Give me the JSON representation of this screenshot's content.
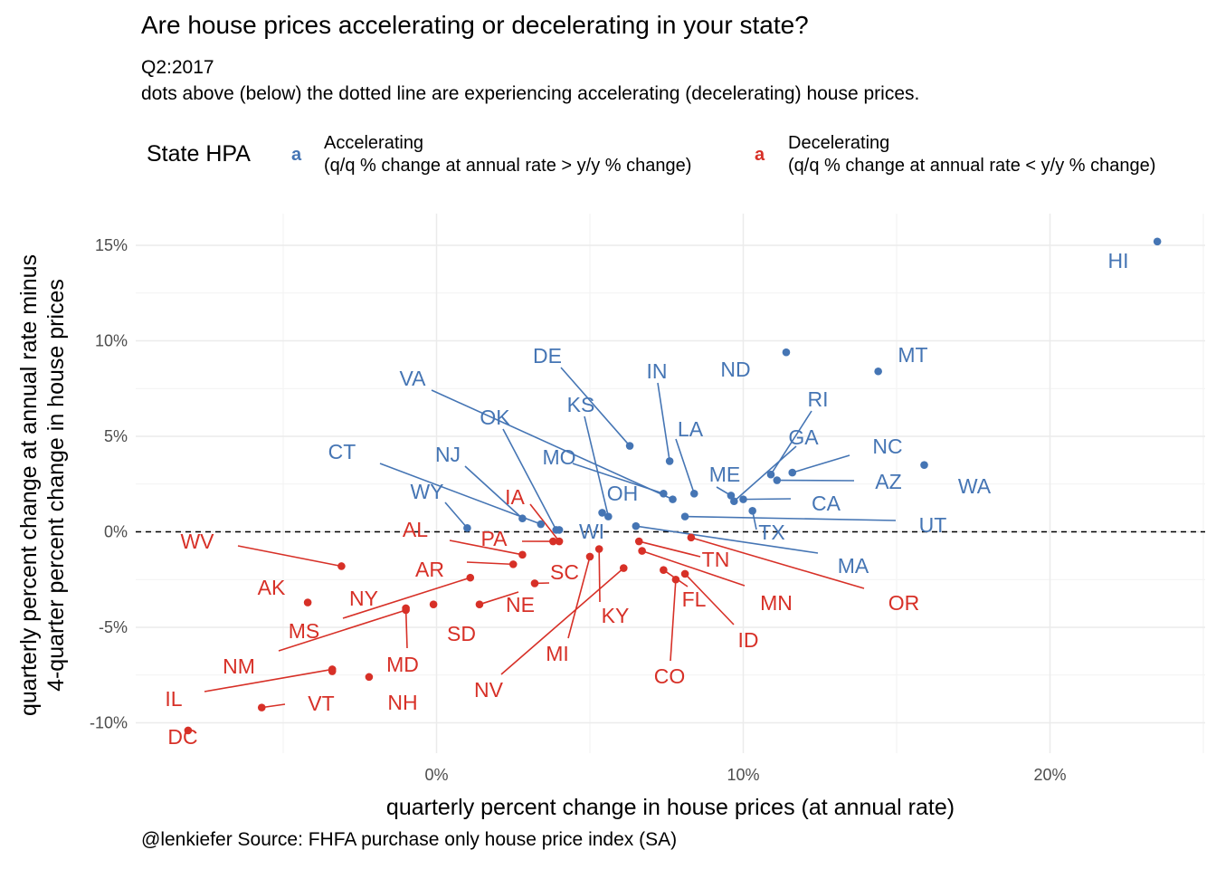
{
  "title": "Are house prices accelerating or decelerating in your state?",
  "subtitle_line1": "Q2:2017",
  "subtitle_line2": "dots above (below) the dotted line are experiencing accelerating (decelerating) house prices.",
  "caption": "@lenkiefer Source: FHFA purchase only house price index (SA)",
  "legend": {
    "title": "State HPA",
    "key_glyph": "a",
    "items": [
      {
        "line1": "Accelerating",
        "line2": "(q/q % change at annual rate > y/y % change)",
        "color": "#4575b4"
      },
      {
        "line1": "Decelerating",
        "line2": "(q/q % change at annual rate < y/y % change)",
        "color": "#d73027"
      }
    ]
  },
  "chart_data": {
    "type": "scatter",
    "title": "Are house prices accelerating or decelerating in your state?",
    "xlabel": "quarterly percent change in house prices (at annual rate)",
    "ylabel_line1": "quarterly percent change at annual rate minus",
    "ylabel_line2": "4-quarter percent change in house prices",
    "xlim": [
      -9.8,
      25.4
    ],
    "ylim": [
      -11.0,
      16.5
    ],
    "x_ticks": [
      0,
      10,
      20
    ],
    "x_tick_labels": [
      "0%",
      "10%",
      "20%"
    ],
    "y_ticks": [
      15,
      10,
      5,
      0,
      -5,
      -10
    ],
    "y_tick_labels": [
      "15%",
      "10%",
      "5%",
      "0%",
      "-5%",
      "-10%"
    ],
    "reference_line": {
      "y": 0,
      "style": "dashed"
    },
    "grid": true,
    "colors": {
      "Accelerating": "#4575b4",
      "Decelerating": "#d73027"
    },
    "points": [
      {
        "state": "HI",
        "x": 23.5,
        "y": 15.2,
        "group": "Accelerating"
      },
      {
        "state": "MT",
        "x": 14.4,
        "y": 8.4,
        "group": "Accelerating"
      },
      {
        "state": "ND",
        "x": 11.4,
        "y": 9.4,
        "group": "Accelerating"
      },
      {
        "state": "WA",
        "x": 15.9,
        "y": 3.5,
        "group": "Accelerating"
      },
      {
        "state": "NC",
        "x": 11.6,
        "y": 3.1,
        "group": "Accelerating"
      },
      {
        "state": "RI",
        "x": 10.9,
        "y": 3.0,
        "group": "Accelerating"
      },
      {
        "state": "AZ",
        "x": 11.1,
        "y": 2.7,
        "group": "Accelerating"
      },
      {
        "state": "GA",
        "x": 9.7,
        "y": 1.6,
        "group": "Accelerating"
      },
      {
        "state": "DE",
        "x": 6.3,
        "y": 4.5,
        "group": "Accelerating"
      },
      {
        "state": "IN",
        "x": 7.6,
        "y": 3.7,
        "group": "Accelerating"
      },
      {
        "state": "LA",
        "x": 8.4,
        "y": 2.0,
        "group": "Accelerating"
      },
      {
        "state": "ME",
        "x": 9.6,
        "y": 1.9,
        "group": "Accelerating"
      },
      {
        "state": "CA",
        "x": 10.0,
        "y": 1.7,
        "group": "Accelerating"
      },
      {
        "state": "UT",
        "x": 8.1,
        "y": 0.8,
        "group": "Accelerating"
      },
      {
        "state": "TX",
        "x": 10.3,
        "y": 1.1,
        "group": "Accelerating"
      },
      {
        "state": "MA",
        "x": 6.5,
        "y": 0.3,
        "group": "Accelerating"
      },
      {
        "state": "VA",
        "x": 7.7,
        "y": 1.7,
        "group": "Accelerating"
      },
      {
        "state": "KS",
        "x": 5.6,
        "y": 0.8,
        "group": "Accelerating"
      },
      {
        "state": "MO",
        "x": 7.4,
        "y": 2.0,
        "group": "Accelerating"
      },
      {
        "state": "OH",
        "x": 5.4,
        "y": 1.0,
        "group": "Accelerating"
      },
      {
        "state": "OK",
        "x": 3.9,
        "y": 0.1,
        "group": "Accelerating"
      },
      {
        "state": "NJ",
        "x": 2.8,
        "y": 0.7,
        "group": "Accelerating"
      },
      {
        "state": "CT",
        "x": 3.4,
        "y": 0.4,
        "group": "Accelerating"
      },
      {
        "state": "WY",
        "x": 1.0,
        "y": 0.2,
        "group": "Accelerating"
      },
      {
        "state": "WI",
        "x": 4.0,
        "y": 0.1,
        "group": "Accelerating"
      },
      {
        "state": "IA",
        "x": 4.0,
        "y": -0.5,
        "group": "Decelerating"
      },
      {
        "state": "PA",
        "x": 3.8,
        "y": -0.5,
        "group": "Decelerating"
      },
      {
        "state": "AL",
        "x": 2.8,
        "y": -1.2,
        "group": "Decelerating"
      },
      {
        "state": "AR",
        "x": 2.5,
        "y": -1.7,
        "group": "Decelerating"
      },
      {
        "state": "SC",
        "x": 3.2,
        "y": -2.7,
        "group": "Decelerating"
      },
      {
        "state": "WV",
        "x": -3.1,
        "y": -1.8,
        "group": "Decelerating"
      },
      {
        "state": "AK",
        "x": -4.2,
        "y": -3.7,
        "group": "Decelerating"
      },
      {
        "state": "NY",
        "x": 1.1,
        "y": -2.4,
        "group": "Decelerating"
      },
      {
        "state": "MS",
        "x": -1.0,
        "y": -4.1,
        "group": "Decelerating"
      },
      {
        "state": "NE",
        "x": 1.4,
        "y": -3.8,
        "group": "Decelerating"
      },
      {
        "state": "SD",
        "x": -0.1,
        "y": -3.8,
        "group": "Decelerating"
      },
      {
        "state": "MD",
        "x": -1.0,
        "y": -4.0,
        "group": "Decelerating"
      },
      {
        "state": "NM",
        "x": -3.4,
        "y": -7.2,
        "group": "Decelerating"
      },
      {
        "state": "NH",
        "x": -2.2,
        "y": -7.6,
        "group": "Decelerating"
      },
      {
        "state": "IL",
        "x": -3.4,
        "y": -7.3,
        "group": "Decelerating"
      },
      {
        "state": "VT",
        "x": -5.7,
        "y": -9.2,
        "group": "Decelerating"
      },
      {
        "state": "DC",
        "x": -8.1,
        "y": -10.4,
        "group": "Decelerating"
      },
      {
        "state": "KY",
        "x": 5.3,
        "y": -0.9,
        "group": "Decelerating"
      },
      {
        "state": "MI",
        "x": 5.0,
        "y": -1.3,
        "group": "Decelerating"
      },
      {
        "state": "NV",
        "x": 6.1,
        "y": -1.9,
        "group": "Decelerating"
      },
      {
        "state": "TN",
        "x": 6.6,
        "y": -0.5,
        "group": "Decelerating"
      },
      {
        "state": "MN",
        "x": 6.7,
        "y": -1.0,
        "group": "Decelerating"
      },
      {
        "state": "OR",
        "x": 8.3,
        "y": -0.3,
        "group": "Decelerating"
      },
      {
        "state": "FL",
        "x": 7.4,
        "y": -2.0,
        "group": "Decelerating"
      },
      {
        "state": "ID",
        "x": 8.1,
        "y": -2.2,
        "group": "Decelerating"
      },
      {
        "state": "CO",
        "x": 7.8,
        "y": -2.5,
        "group": "Decelerating"
      }
    ]
  }
}
